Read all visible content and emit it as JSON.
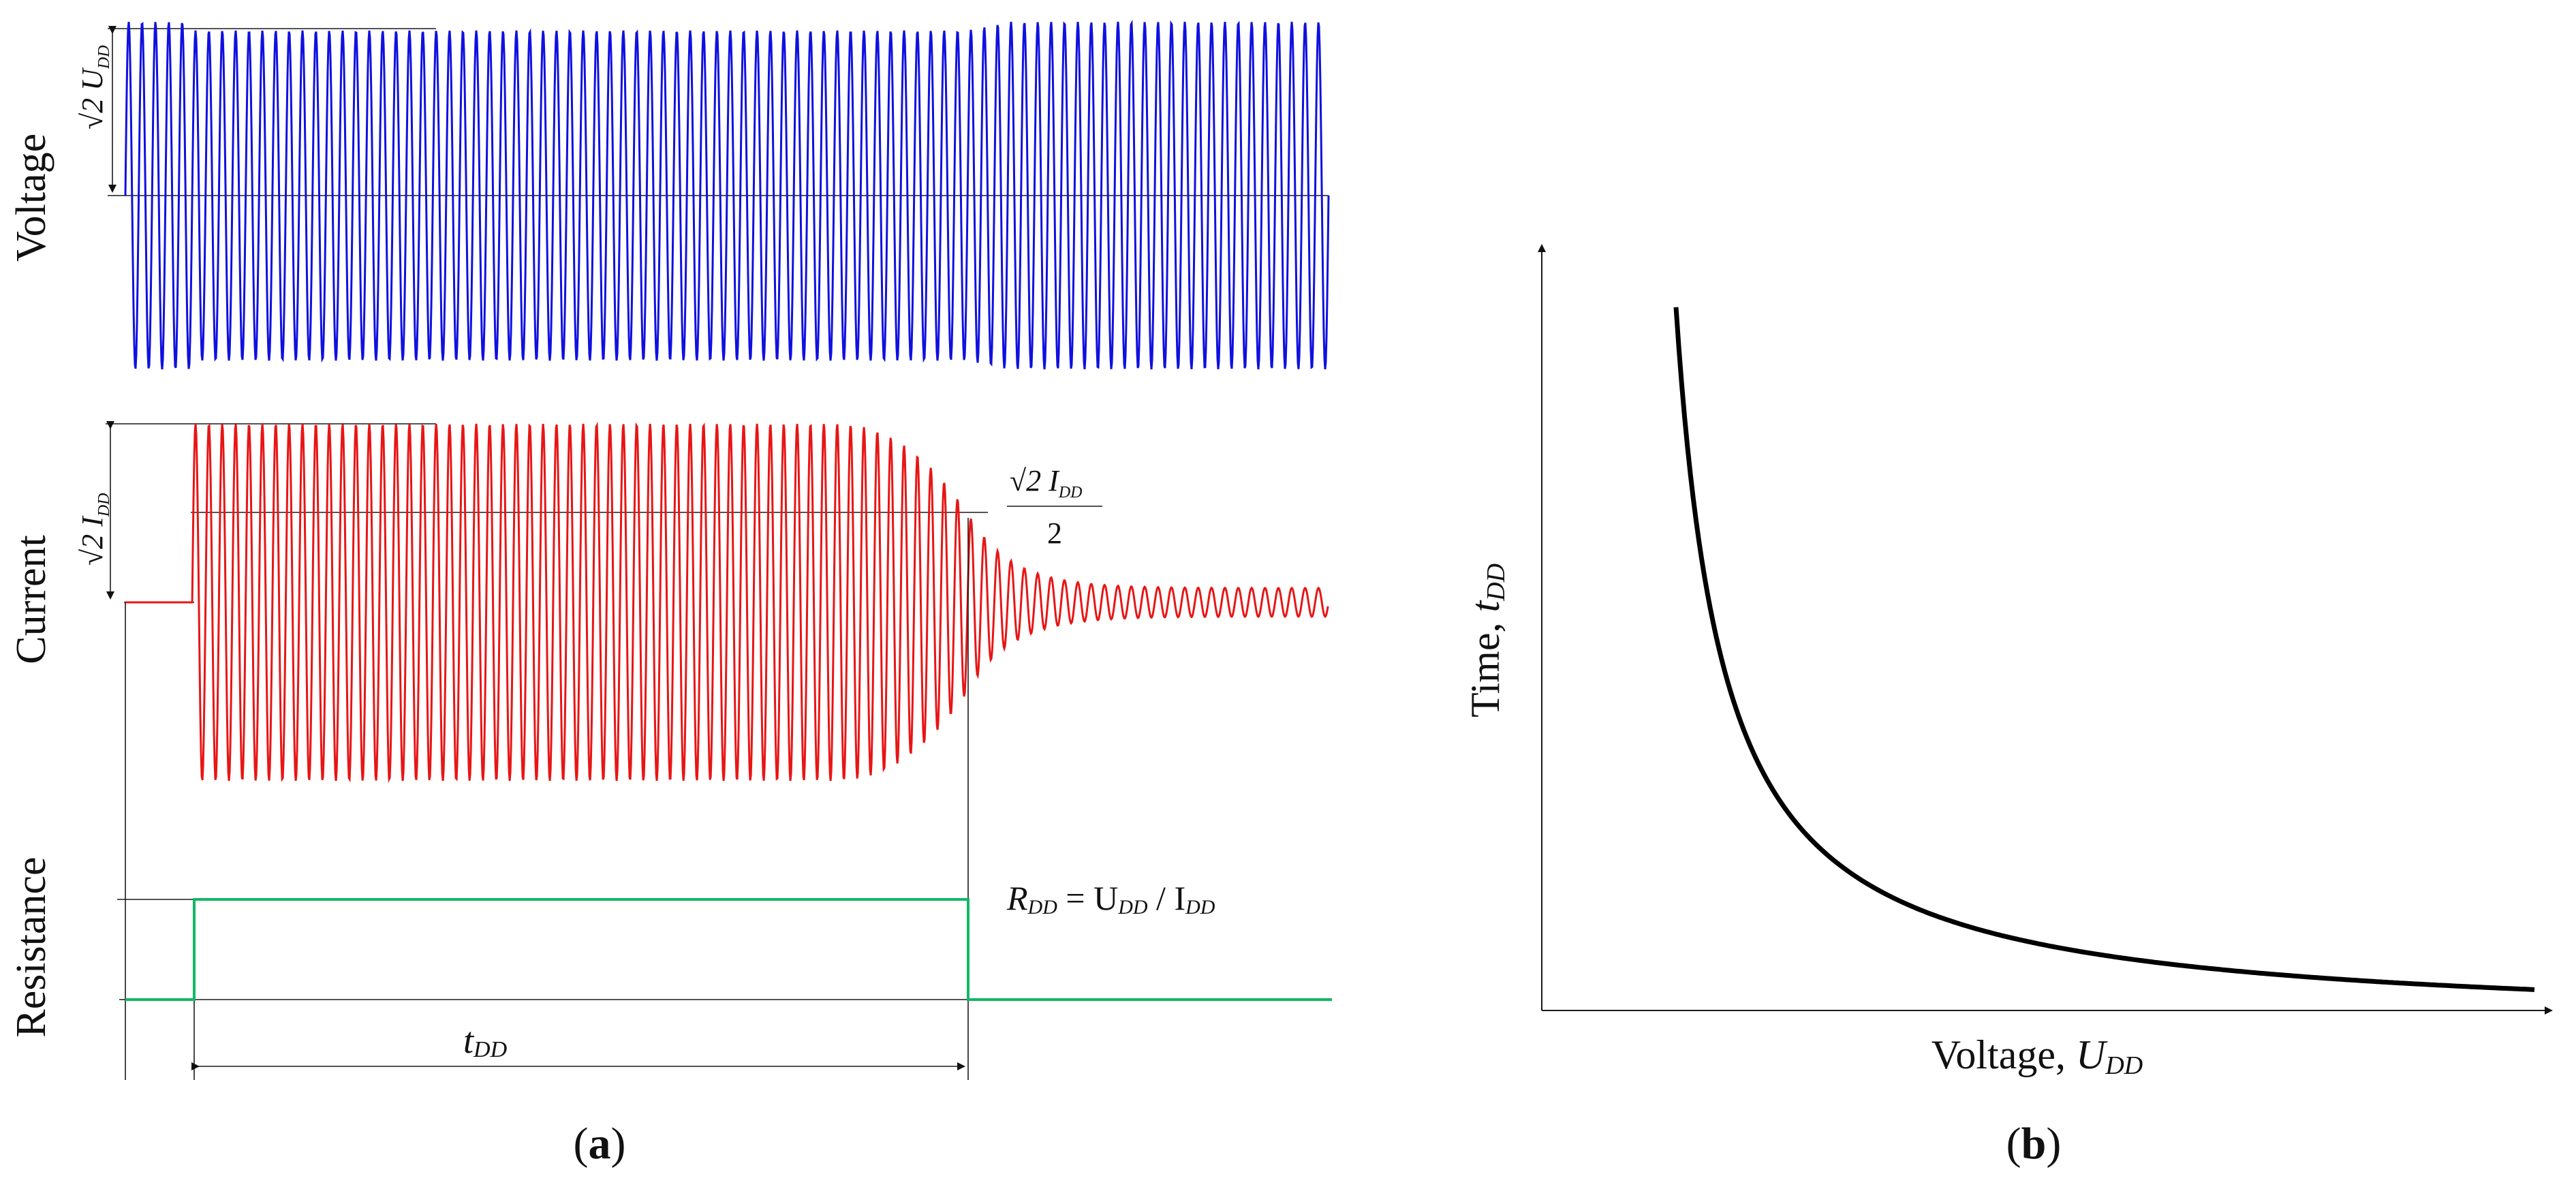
{
  "panel_a": {
    "caption_open": "(",
    "caption_letter": "a",
    "caption_close": ")",
    "voltage_axis_label": "Voltage",
    "current_axis_label": "Current",
    "resistance_axis_label": "Resistance",
    "voltage_amplitude_label": "√2 U",
    "voltage_amplitude_sub": "DD",
    "current_amplitude_label": "√2 I",
    "current_amplitude_sub": "DD",
    "half_current_numerator": "√2 I",
    "half_current_sub": "DD",
    "half_current_denominator": "2",
    "resistance_eq_R": "R",
    "resistance_eq_R_sub": "DD",
    "resistance_eq_mid": " = U",
    "resistance_eq_U_sub": "DD",
    "resistance_eq_slash": " / I",
    "resistance_eq_I_sub": "DD",
    "duration_label": "t",
    "duration_sub": "DD",
    "colors": {
      "voltage": "#1010e0",
      "current": "#e81515",
      "resistance": "#11b866"
    },
    "signals": {
      "cycles_shown": 90,
      "fault_start_cycle": 5,
      "fault_clear_cycle": 63,
      "voltage_sag_depth": 0.05,
      "current_decay_level": 0.08
    }
  },
  "panel_b": {
    "caption_open": "(",
    "caption_letter": "b",
    "caption_close": ")",
    "x_axis_label": "Voltage, ",
    "x_axis_var": "U",
    "x_axis_sub": "DD",
    "y_axis_label": "Time, ",
    "y_axis_var": "t",
    "y_axis_sub": "DD",
    "curve": "inverse"
  }
}
